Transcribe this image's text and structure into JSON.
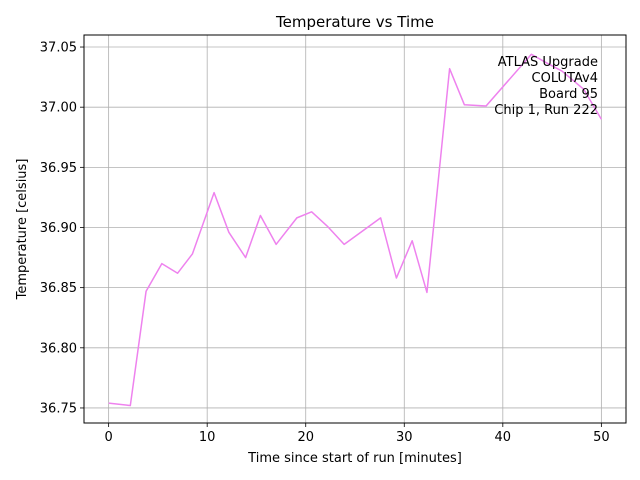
{
  "chart_data": {
    "type": "line",
    "title": "Temperature vs Time",
    "xlabel": "Time since start of run [minutes]",
    "ylabel": "Temperature [celsius]",
    "xlim": [
      -2.5,
      52.5
    ],
    "ylim": [
      36.7375,
      37.06
    ],
    "xticks": [
      0,
      10,
      20,
      30,
      40,
      50
    ],
    "yticks": [
      36.75,
      36.8,
      36.85,
      36.9,
      36.95,
      37.0,
      37.05
    ],
    "xtick_labels": [
      "0",
      "10",
      "20",
      "30",
      "40",
      "50"
    ],
    "ytick_labels": [
      "36.75",
      "36.80",
      "36.85",
      "36.90",
      "36.95",
      "37.00",
      "37.05"
    ],
    "grid": true,
    "line_color": "#ee82ee",
    "annotation_lines": [
      "ATLAS Upgrade",
      "COLUTAv4",
      "Board 95",
      "Chip 1, Run 222"
    ],
    "annotation_placement": "top-right",
    "series": [
      {
        "x": [
          0.0,
          2.2,
          3.8,
          5.4,
          7.0,
          8.5,
          10.7,
          12.2,
          13.9,
          15.4,
          17.0,
          19.1,
          20.6,
          22.2,
          23.9,
          27.6,
          29.2,
          30.8,
          32.3,
          34.6,
          36.1,
          38.3,
          42.9,
          44.4,
          46.0,
          48.2,
          50.0
        ],
        "y": [
          36.754,
          36.752,
          36.847,
          36.87,
          36.862,
          36.878,
          36.929,
          36.896,
          36.875,
          36.91,
          36.886,
          36.908,
          36.913,
          36.901,
          36.886,
          36.908,
          36.858,
          36.889,
          36.846,
          37.032,
          37.002,
          37.001,
          37.044,
          37.037,
          37.03,
          37.015,
          36.99
        ]
      }
    ]
  }
}
